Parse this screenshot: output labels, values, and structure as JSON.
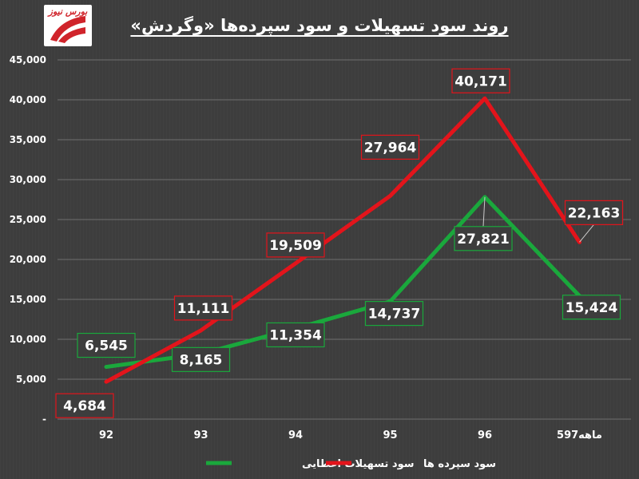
{
  "header": {
    "title": "روند سود تسهیلات و سود سپرده‌ها «وگردش»",
    "logo_text": "بورس نیوز"
  },
  "colors": {
    "background": "#3d3d3d",
    "facilities": "#1aa83c",
    "deposits": "#e3141b",
    "grid": "#6e6e6e",
    "text": "#ffffff",
    "logo_red": "#d0242b"
  },
  "chart_data": {
    "type": "line",
    "title": "روند سود تسهیلات و سود سپرده‌ها «وگردش»",
    "categories": [
      "92",
      "93",
      "94",
      "95",
      "96",
      "5ماهه97"
    ],
    "ylim": [
      0,
      45000
    ],
    "yticks": [
      "-",
      "5,000",
      "10,000",
      "15,000",
      "20,000",
      "25,000",
      "30,000",
      "35,000",
      "40,000",
      "45,000"
    ],
    "grid": true,
    "legend_position": "bottom",
    "series": [
      {
        "name": "سود تسهیلات اعطایی",
        "color": "#1aa83c",
        "values": [
          6545,
          8165,
          11354,
          14737,
          27821,
          15424
        ],
        "labels": [
          "6,545",
          "8,165",
          "11,354",
          "14,737",
          "27,821",
          "15,424"
        ]
      },
      {
        "name": "سود سپرده ها",
        "color": "#e3141b",
        "values": [
          4684,
          11111,
          19509,
          27964,
          40171,
          22163
        ],
        "labels": [
          "4,684",
          "11,111",
          "19,509",
          "27,964",
          "40,171",
          "22,163"
        ]
      }
    ]
  }
}
